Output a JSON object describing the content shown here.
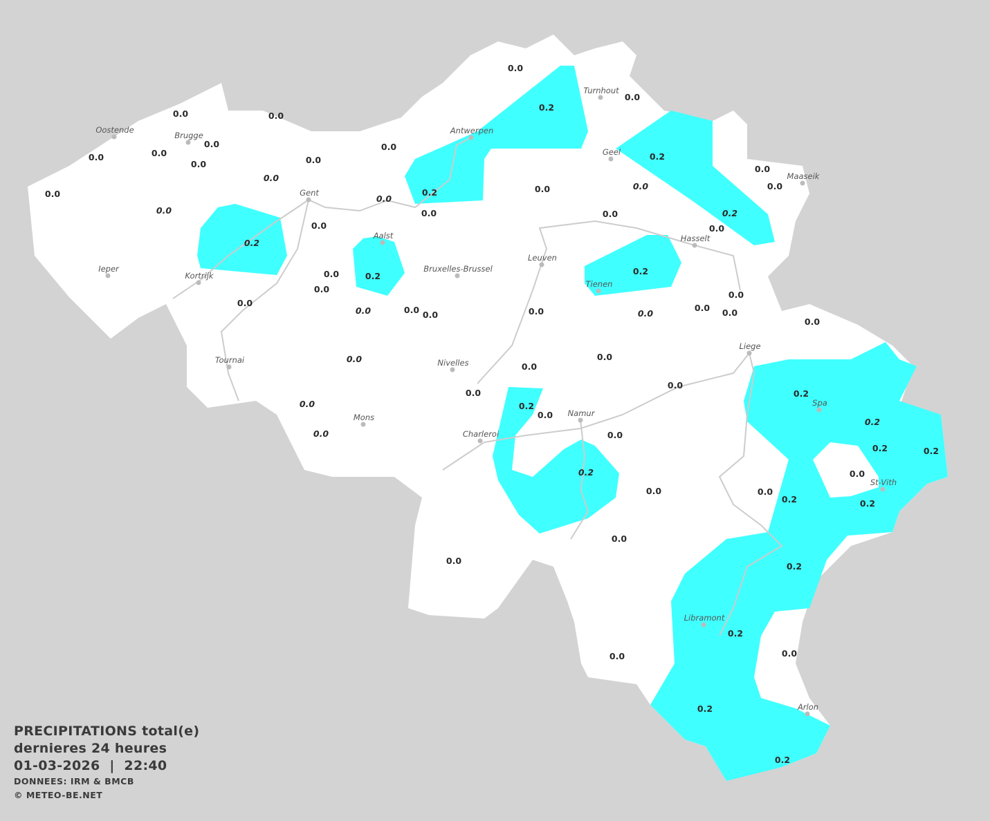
{
  "colors": {
    "background": "#d3d3d3",
    "land": "#ffffff",
    "precip_0_2": "#40ffff",
    "rivers": "#cccccc",
    "city_dot": "#bbbbbb"
  },
  "legend": {
    "title": "PRECIPITATIONS total(e)",
    "period": "dernieres 24 heures",
    "datetime": "01-03-2026  |  22:40",
    "source": "DONNEES: IRM & BMCB",
    "copyright": "© METEO-BE.NET"
  },
  "cities": [
    "Oostende",
    "Brugge",
    "Gent",
    "Antwerpen",
    "Turnhout",
    "Geel",
    "Maaseik",
    "Hasselt",
    "Aalst",
    "Leuven",
    "Tienen",
    "Bruxelles-Brussel",
    "Ieper",
    "Kortrijk",
    "Tournai",
    "Nivelles",
    "Liege",
    "Mons",
    "Namur",
    "Charleroi",
    "Spa",
    "St-Vith",
    "Libramont",
    "Arlon"
  ],
  "stations": [
    {
      "v": "0.0"
    },
    {
      "v": "0.2"
    },
    {
      "v": "0.0"
    },
    {
      "v": "0.0"
    },
    {
      "v": "0.0"
    },
    {
      "v": "0.0"
    },
    {
      "v": "0.0"
    },
    {
      "v": "0.0"
    },
    {
      "v": "0.0"
    },
    {
      "v": "0.0"
    },
    {
      "v": "0.0"
    },
    {
      "v": "0.0",
      "italic": true
    },
    {
      "v": "0.0"
    },
    {
      "v": "0.0",
      "italic": true
    },
    {
      "v": "0.0",
      "italic": true
    },
    {
      "v": "0.2"
    },
    {
      "v": "0.0"
    },
    {
      "v": "0.0"
    },
    {
      "v": "0.2",
      "italic": true
    },
    {
      "v": "0.0"
    },
    {
      "v": "0.0",
      "italic": true
    },
    {
      "v": "0.2"
    },
    {
      "v": "0.0"
    },
    {
      "v": "0.0"
    },
    {
      "v": "0.2",
      "italic": true
    },
    {
      "v": "0.0"
    },
    {
      "v": "0.0"
    },
    {
      "v": "0.2"
    },
    {
      "v": "0.0"
    },
    {
      "v": "0.0"
    },
    {
      "v": "0.2"
    },
    {
      "v": "0.0"
    },
    {
      "v": "0.0",
      "italic": true
    },
    {
      "v": "0.0"
    },
    {
      "v": "0.0"
    },
    {
      "v": "0.0"
    },
    {
      "v": "0.0",
      "italic": true
    },
    {
      "v": "0.0"
    },
    {
      "v": "0.0"
    },
    {
      "v": "0.0"
    },
    {
      "v": "0.0"
    },
    {
      "v": "0.0",
      "italic": true
    },
    {
      "v": "0.0"
    },
    {
      "v": "0.0"
    },
    {
      "v": "0.0"
    },
    {
      "v": "0.0"
    },
    {
      "v": "0.2"
    },
    {
      "v": "0.0"
    },
    {
      "v": "0.0",
      "italic": true
    },
    {
      "v": "0.0",
      "italic": true
    },
    {
      "v": "0.0"
    },
    {
      "v": "0.2",
      "italic": true
    },
    {
      "v": "0.0"
    },
    {
      "v": "0.2"
    },
    {
      "v": "0.2",
      "italic": true
    },
    {
      "v": "0.2"
    },
    {
      "v": "0.2"
    },
    {
      "v": "0.0"
    },
    {
      "v": "0.0"
    },
    {
      "v": "0.2"
    },
    {
      "v": "0.2"
    },
    {
      "v": "0.0"
    },
    {
      "v": "0.0"
    },
    {
      "v": "0.2"
    },
    {
      "v": "0.2"
    },
    {
      "v": "0.0"
    },
    {
      "v": "0.0"
    },
    {
      "v": "0.2"
    },
    {
      "v": "0.2"
    }
  ]
}
